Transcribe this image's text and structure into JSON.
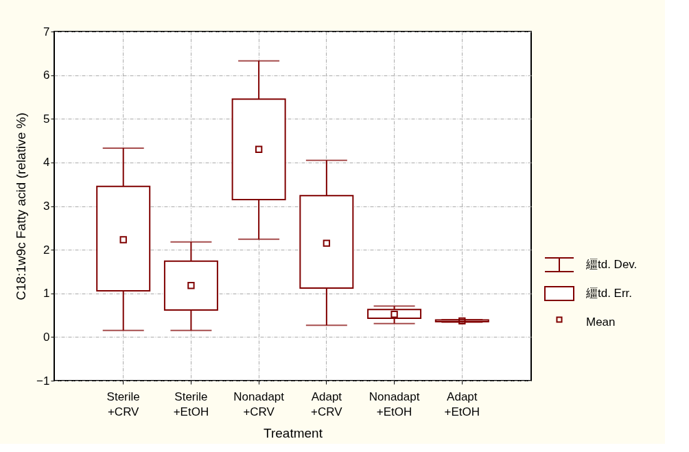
{
  "chart_data": {
    "type": "box",
    "xlabel": "Treatment",
    "ylabel": "C18:1w9c Fatty acid (relative %)",
    "categories": [
      "Sterile\n+CRV",
      "Sterile\n+EtOH",
      "Nonadapt\n+CRV",
      "Adapt\n+CRV",
      "Nonadapt\n+EtOH",
      "Adapt\n+EtOH"
    ],
    "boxes": [
      {
        "low": 0.15,
        "q1": 1.06,
        "q3": 3.45,
        "high": 4.33,
        "mean": 2.23
      },
      {
        "low": 0.15,
        "q1": 0.62,
        "q3": 1.74,
        "high": 2.18,
        "mean": 1.18
      },
      {
        "low": 2.24,
        "q1": 3.15,
        "q3": 5.45,
        "high": 6.33,
        "mean": 4.3
      },
      {
        "low": 0.27,
        "q1": 1.12,
        "q3": 3.24,
        "high": 4.05,
        "mean": 2.15
      },
      {
        "low": 0.31,
        "q1": 0.43,
        "q3": 0.63,
        "high": 0.71,
        "mean": 0.52
      },
      {
        "low": 0.34,
        "q1": 0.35,
        "q3": 0.39,
        "high": 0.4,
        "mean": 0.37
      }
    ],
    "color": "#800000",
    "marker": "square",
    "annotations": [
      "繮td. Dev.",
      "繮td. Err.",
      "Mean"
    ],
    "ylim": [
      -1,
      7
    ],
    "yticks": [
      -1,
      0,
      1,
      2,
      3,
      4,
      5,
      6,
      7
    ],
    "grid": true
  }
}
